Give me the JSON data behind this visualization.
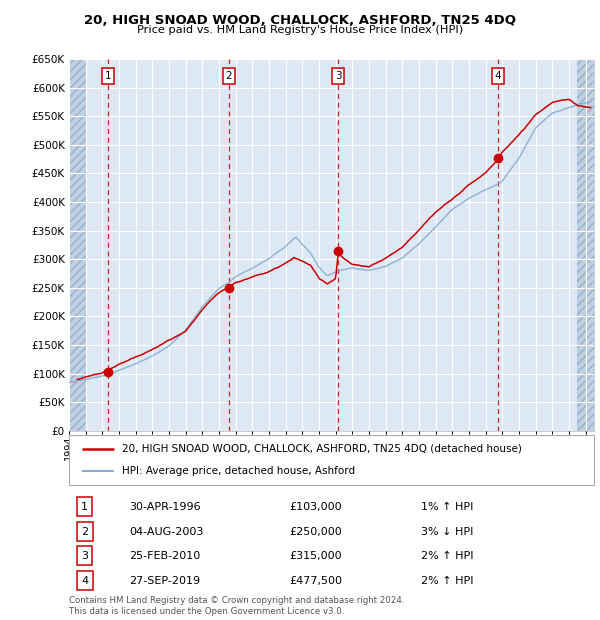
{
  "title": "20, HIGH SNOAD WOOD, CHALLOCK, ASHFORD, TN25 4DQ",
  "subtitle": "Price paid vs. HM Land Registry's House Price Index (HPI)",
  "sales": [
    {
      "year": 1996,
      "month": 4,
      "day": 30,
      "price": 103000
    },
    {
      "year": 2003,
      "month": 8,
      "day": 4,
      "price": 250000
    },
    {
      "year": 2010,
      "month": 2,
      "day": 25,
      "price": 315000
    },
    {
      "year": 2019,
      "month": 9,
      "day": 27,
      "price": 477500
    }
  ],
  "table_rows": [
    {
      "num": "1",
      "date": "30-APR-1996",
      "price": "£103,000",
      "hpi": "1% ↑ HPI"
    },
    {
      "num": "2",
      "date": "04-AUG-2003",
      "price": "£250,000",
      "hpi": "3% ↓ HPI"
    },
    {
      "num": "3",
      "date": "25-FEB-2010",
      "price": "£315,000",
      "hpi": "2% ↑ HPI"
    },
    {
      "num": "4",
      "date": "27-SEP-2019",
      "price": "£477,500",
      "hpi": "2% ↑ HPI"
    }
  ],
  "legend_line1": "20, HIGH SNOAD WOOD, CHALLOCK, ASHFORD, TN25 4DQ (detached house)",
  "legend_line2": "HPI: Average price, detached house, Ashford",
  "footer": "Contains HM Land Registry data © Crown copyright and database right 2024.\nThis data is licensed under the Open Government Licence v3.0.",
  "ylim": [
    0,
    650000
  ],
  "yticks": [
    0,
    50000,
    100000,
    150000,
    200000,
    250000,
    300000,
    350000,
    400000,
    450000,
    500000,
    550000,
    600000,
    650000
  ],
  "xlim_start": 1994.0,
  "xlim_end": 2025.5,
  "hatch_left_end": 1995.0,
  "hatch_right_start": 2024.5,
  "bg_chart": "#dce9f5",
  "bg_hatch_color": "#c0d0e4",
  "grid_color": "#ffffff",
  "red_color": "#cc0000",
  "blue_color": "#88aacc",
  "vline_color": "#cc0000"
}
